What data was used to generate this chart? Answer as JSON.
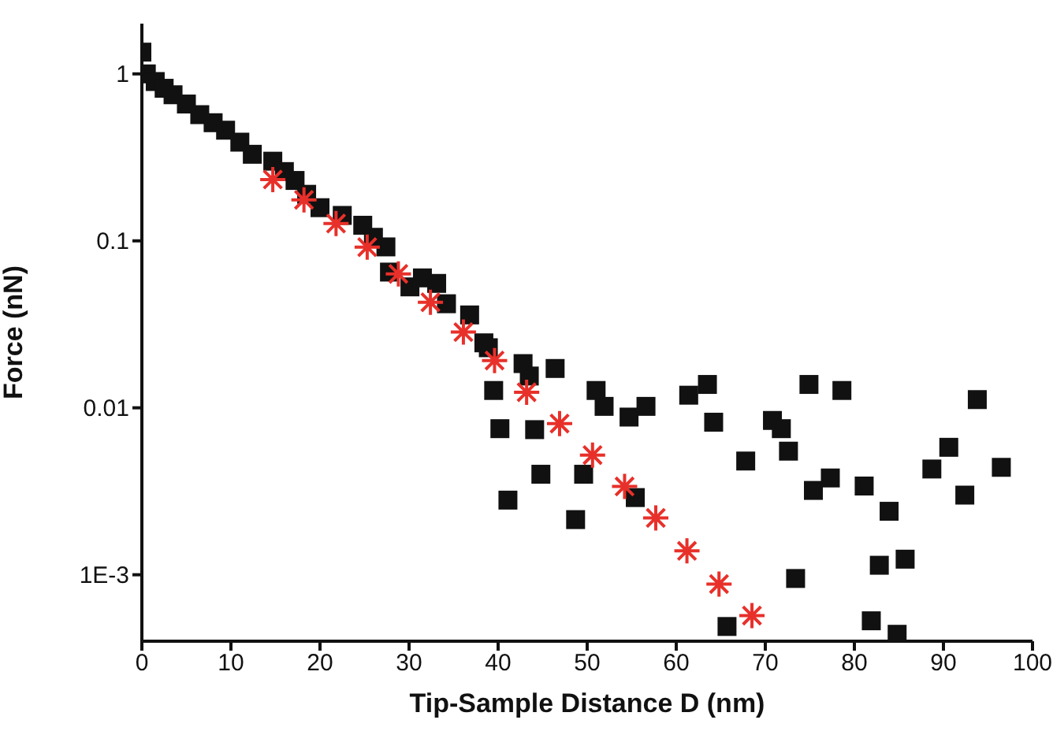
{
  "chart_data": {
    "type": "scatter",
    "xlabel": "Tip-Sample Distance D (nm)",
    "ylabel": "Force (nN)",
    "log": "y",
    "xlim": [
      0,
      100
    ],
    "xticks": [
      0,
      10,
      20,
      30,
      40,
      50,
      60,
      70,
      80,
      90,
      100
    ],
    "ylim": [
      0.0004,
      2
    ],
    "yticks": [
      {
        "value": 0.001,
        "label": "1E-3"
      },
      0.01,
      0.1,
      1
    ],
    "grid": false,
    "legend": false,
    "series": [
      {
        "color": "#111111",
        "marker": "square",
        "x": [
          0,
          0.5,
          1.5,
          2.5,
          3.5,
          5,
          6.5,
          8,
          9.4,
          11,
          12.4,
          14.7,
          16,
          17.2,
          18.5,
          20,
          22.5,
          24.8,
          26,
          27.4,
          27.8,
          30.1,
          31.5,
          33.1,
          34.2,
          36.8,
          38.4,
          38.9,
          42.8,
          43.5,
          39.5,
          40.2,
          44.1,
          46.4,
          44.8,
          41.1,
          48.7,
          49.6,
          51.0,
          51.9,
          54.7,
          55.4,
          56.6,
          61.4,
          63.5,
          64.2,
          65.7,
          67.8,
          70.8,
          71.8,
          72.6,
          73.4,
          74.9,
          75.4,
          77.3,
          78.6,
          81.1,
          81.9,
          82.8,
          83.9,
          84.8,
          85.7,
          88.7,
          90.6,
          92.4,
          93.8,
          96.5
        ],
        "values": [
          1.35,
          1.0,
          0.9,
          0.82,
          0.75,
          0.66,
          0.57,
          0.51,
          0.46,
          0.39,
          0.33,
          0.3,
          0.26,
          0.23,
          0.19,
          0.158,
          0.142,
          0.124,
          0.105,
          0.092,
          0.065,
          0.053,
          0.06,
          0.0556,
          0.042,
          0.036,
          0.0245,
          0.0229,
          0.0184,
          0.0155,
          0.0127,
          0.0075,
          0.0074,
          0.0172,
          0.004,
          0.0028,
          0.00214,
          0.004,
          0.0127,
          0.0102,
          0.0088,
          0.0029,
          0.0102,
          0.0119,
          0.0138,
          0.0082,
          0.00049,
          0.0048,
          0.0084,
          0.0075,
          0.0055,
          0.00095,
          0.0138,
          0.0032,
          0.0038,
          0.0127,
          0.0034,
          0.00053,
          0.00114,
          0.0024,
          0.00044,
          0.00124,
          0.0043,
          0.0058,
          0.003,
          0.0112,
          0.0044
        ]
      },
      {
        "color": "#e8302a",
        "marker": "cross",
        "x": [
          14.7,
          18.2,
          21.8,
          25.3,
          28.8,
          32.4,
          36.1,
          39.6,
          43.2,
          46.9,
          50.6,
          54.2,
          57.7,
          61.2,
          64.8,
          68.5
        ],
        "values": [
          0.233,
          0.176,
          0.127,
          0.0917,
          0.0634,
          0.0429,
          0.0284,
          0.0192,
          0.0124,
          0.00805,
          0.00521,
          0.00338,
          0.00219,
          0.00139,
          0.00088,
          0.00057
        ]
      }
    ]
  }
}
